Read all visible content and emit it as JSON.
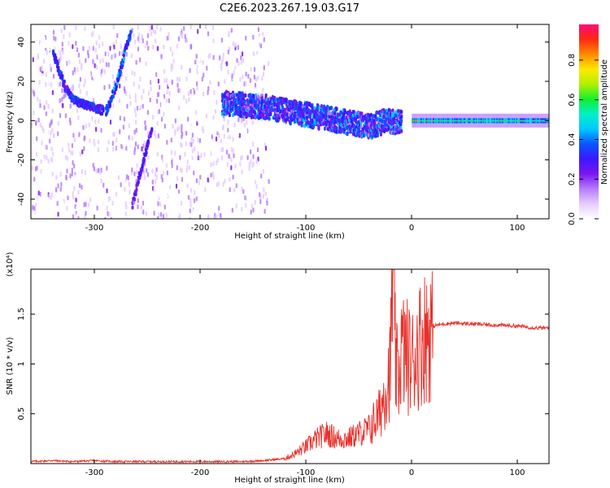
{
  "title": "C2E6.2023.267.19.03.G17",
  "colors": {
    "snr_line": "#e8302a",
    "background": "#ffffff",
    "axis": "#000000",
    "colormap": [
      "#ffffff",
      "#e6ccff",
      "#b57cff",
      "#7b16f0",
      "#3b18ff",
      "#0a55ff",
      "#00c8ff",
      "#00f0c8",
      "#10f030",
      "#b0f000",
      "#ffe800",
      "#ff8a00",
      "#ff2a10",
      "#ff0a78"
    ]
  },
  "chart_data": [
    {
      "type": "heatmap",
      "xlabel": "Height of straight line (km)",
      "ylabel": "Frequency (Hz)",
      "xlim": [
        -360,
        130
      ],
      "ylim": [
        -50,
        49
      ],
      "x_ticks": [
        -300,
        -200,
        -100,
        0,
        100
      ],
      "y_ticks": [
        -40,
        -20,
        0,
        20,
        40
      ],
      "colorbar": {
        "label": "Normalized spectral amplitude",
        "range": [
          0.0,
          0.98
        ],
        "ticks": [
          0.0,
          0.2,
          0.4,
          0.6,
          0.8
        ]
      },
      "features": [
        {
          "name": "noise",
          "x_range": [
            -360,
            -135
          ],
          "freq_range": [
            -50,
            49
          ],
          "amplitude": 0.1
        },
        {
          "name": "descending trace",
          "points": [
            [
              -340,
              35
            ],
            [
              -330,
              20
            ],
            [
              -322,
              12
            ],
            [
              -315,
              10
            ],
            [
              -305,
              8
            ],
            [
              -292,
              6
            ]
          ],
          "amplitude": 0.35
        },
        {
          "name": "rising trace",
          "points": [
            [
              -290,
              6
            ],
            [
              -285,
              12
            ],
            [
              -280,
              20
            ],
            [
              -275,
              30
            ],
            [
              -270,
              40
            ],
            [
              -266,
              47
            ]
          ],
          "amplitude": 0.4
        },
        {
          "name": "lower rising trace",
          "points": [
            [
              -265,
              -42
            ],
            [
              -260,
              -30
            ],
            [
              -255,
              -20
            ],
            [
              -250,
              -10
            ],
            [
              -246,
              -3
            ]
          ],
          "amplitude": 0.3
        },
        {
          "name": "converging band",
          "points": [
            [
              -180,
              10
            ],
            [
              -140,
              8
            ],
            [
              -110,
              5
            ],
            [
              -80,
              2
            ],
            [
              -60,
              0
            ],
            [
              -40,
              -2
            ],
            [
              -25,
              1
            ],
            [
              -10,
              0
            ]
          ],
          "amplitude": 0.35
        },
        {
          "name": "carrier line",
          "points": [
            [
              0,
              0
            ],
            [
              50,
              0
            ],
            [
              100,
              0
            ],
            [
              130,
              0
            ]
          ],
          "amplitude": 0.9
        }
      ]
    },
    {
      "type": "line",
      "xlabel": "Height of straight line (km)",
      "ylabel": "SNR (10 * v/v)",
      "y_scale_label": "(x10⁴)",
      "xlim": [
        -360,
        130
      ],
      "ylim": [
        0,
        1.95
      ],
      "x_ticks": [
        -300,
        -200,
        -100,
        0,
        100
      ],
      "y_ticks": [
        0.5,
        1.0,
        1.5
      ],
      "series": [
        {
          "x": [
            -360,
            -340,
            -320,
            -300,
            -280,
            -260,
            -240,
            -220,
            -200,
            -180,
            -160,
            -140,
            -120,
            -110,
            -100,
            -90,
            -80,
            -70,
            -60,
            -50,
            -40,
            -30,
            -25,
            -20,
            -18,
            -15,
            -12,
            -10,
            -5,
            0,
            5,
            10,
            20,
            30,
            40,
            60,
            80,
            100,
            110,
            120,
            130
          ],
          "y": [
            0.02,
            0.03,
            0.02,
            0.03,
            0.02,
            0.02,
            0.02,
            0.02,
            0.02,
            0.02,
            0.02,
            0.03,
            0.05,
            0.1,
            0.17,
            0.25,
            0.3,
            0.25,
            0.25,
            0.3,
            0.35,
            0.5,
            0.75,
            0.95,
            1.95,
            0.95,
            0.85,
            1.15,
            1.1,
            1.0,
            1.15,
            1.25,
            1.38,
            1.4,
            1.41,
            1.4,
            1.39,
            1.38,
            1.37,
            1.36,
            1.36
          ]
        }
      ]
    }
  ]
}
